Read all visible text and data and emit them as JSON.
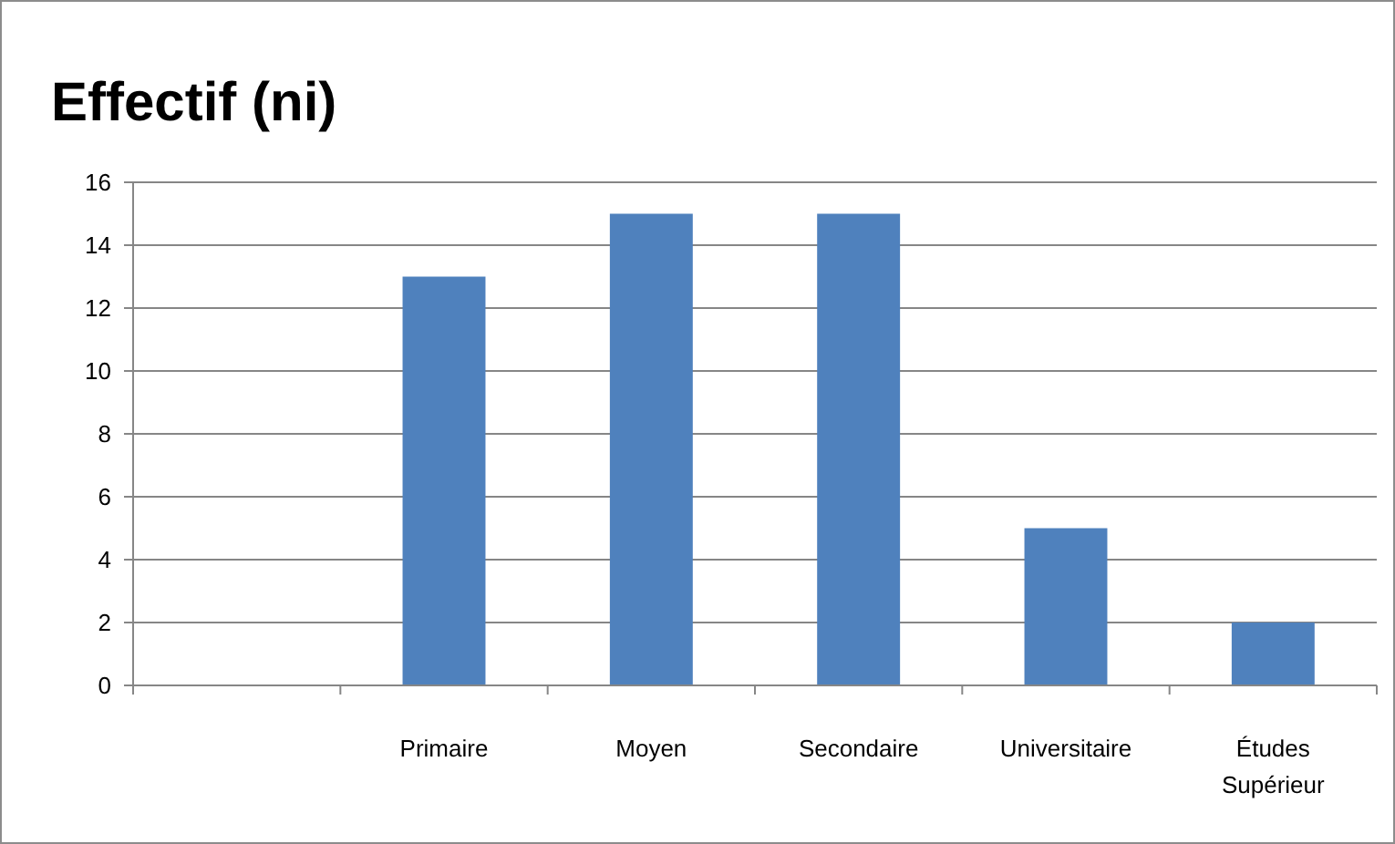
{
  "chart_data": {
    "type": "bar",
    "title": "Effectif (ni)",
    "categories": [
      null,
      "Primaire",
      "Moyen",
      "Secondaire",
      "Universitaire",
      "Études Supérieur"
    ],
    "values": [
      null,
      13,
      15,
      15,
      5,
      2
    ],
    "color": "#4f81bd",
    "ylim": [
      0,
      16
    ],
    "yticks": [
      0,
      2,
      4,
      6,
      8,
      10,
      12,
      14,
      16
    ],
    "grid": "y"
  }
}
